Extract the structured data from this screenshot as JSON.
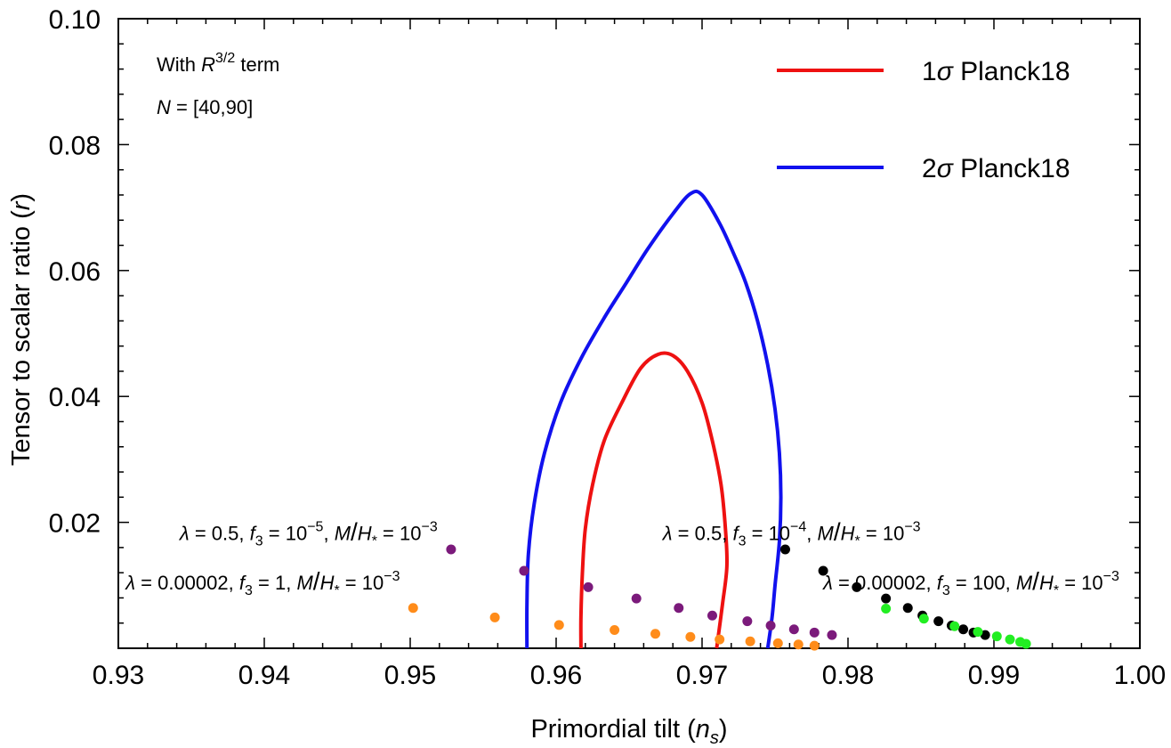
{
  "chart_data": {
    "type": "scatter",
    "title": "",
    "xlabel": {
      "main": "Primordial tilt (",
      "var": "n",
      "sub": "s",
      "close": ")"
    },
    "ylabel": {
      "main": "Tensor to scalar ratio (",
      "var": "r",
      "close": ")"
    },
    "xlim": [
      0.93,
      1.0
    ],
    "ylim": [
      0.0,
      0.1
    ],
    "x_ticks": [
      0.93,
      0.94,
      0.95,
      0.96,
      0.97,
      0.98,
      0.99,
      1.0
    ],
    "x_tick_labels": [
      "0.93",
      "0.94",
      "0.95",
      "0.96",
      "0.97",
      "0.98",
      "0.99",
      "1.00"
    ],
    "y_ticks": [
      0.02,
      0.04,
      0.06,
      0.08,
      0.1
    ],
    "y_tick_labels": [
      "0.02",
      "0.04",
      "0.06",
      "0.08",
      "0.10"
    ],
    "legend": {
      "position": "top-right",
      "items": [
        {
          "sigma": "1",
          "symbol": "σ",
          "text": " Planck18",
          "color": "#ee1111"
        },
        {
          "sigma": "2",
          "symbol": "σ",
          "text": " Planck18",
          "color": "#1111ee"
        }
      ]
    },
    "panel_text": {
      "line1": {
        "pre": "With ",
        "var": "R",
        "sup": "3/2",
        "post": " term"
      },
      "line2": {
        "var": "N",
        "post": " = [40,90]"
      }
    },
    "contours": [
      {
        "name": "1σ Planck18",
        "color": "#ee1111",
        "points": [
          [
            0.9617,
            0.0
          ],
          [
            0.9617,
            0.005
          ],
          [
            0.9618,
            0.012
          ],
          [
            0.962,
            0.019
          ],
          [
            0.9625,
            0.026
          ],
          [
            0.9633,
            0.033
          ],
          [
            0.9645,
            0.039
          ],
          [
            0.9658,
            0.0445
          ],
          [
            0.967,
            0.0467
          ],
          [
            0.968,
            0.0465
          ],
          [
            0.969,
            0.044
          ],
          [
            0.97,
            0.039
          ],
          [
            0.9707,
            0.033
          ],
          [
            0.9713,
            0.026
          ],
          [
            0.9716,
            0.019
          ],
          [
            0.9717,
            0.013
          ],
          [
            0.9714,
            0.007
          ],
          [
            0.971,
            0.0
          ]
        ]
      },
      {
        "name": "2σ Planck18",
        "color": "#1111ee",
        "points": [
          [
            0.958,
            0.0
          ],
          [
            0.958,
            0.007
          ],
          [
            0.9581,
            0.015
          ],
          [
            0.9585,
            0.023
          ],
          [
            0.9592,
            0.031
          ],
          [
            0.9603,
            0.039
          ],
          [
            0.9617,
            0.046
          ],
          [
            0.9633,
            0.0525
          ],
          [
            0.9648,
            0.058
          ],
          [
            0.9663,
            0.0635
          ],
          [
            0.968,
            0.069
          ],
          [
            0.9692,
            0.0722
          ],
          [
            0.97,
            0.072
          ],
          [
            0.9712,
            0.0675
          ],
          [
            0.9722,
            0.0625
          ],
          [
            0.973,
            0.058
          ],
          [
            0.9738,
            0.052
          ],
          [
            0.9745,
            0.045
          ],
          [
            0.975,
            0.038
          ],
          [
            0.9753,
            0.031
          ],
          [
            0.9754,
            0.024
          ],
          [
            0.9753,
            0.017
          ],
          [
            0.975,
            0.01
          ],
          [
            0.9748,
            0.005
          ],
          [
            0.9745,
            0.0
          ]
        ]
      }
    ],
    "series": [
      {
        "name": "lambda=0.00002, f3=1",
        "color": "#ff8c1a",
        "x": [
          0.9502,
          0.9558,
          0.9602,
          0.964,
          0.9668,
          0.9692,
          0.9712,
          0.9733,
          0.9752,
          0.9766,
          0.9777
        ],
        "y": [
          0.0064,
          0.0049,
          0.0037,
          0.0029,
          0.0023,
          0.0018,
          0.0014,
          0.0011,
          0.0008,
          0.0006,
          0.0004
        ]
      },
      {
        "name": "lambda=0.5, f3=1e-5",
        "color": "#7b1a7b",
        "x": [
          0.9528,
          0.9578,
          0.9622,
          0.9655,
          0.9684,
          0.9707,
          0.9731,
          0.9747,
          0.9763,
          0.9777,
          0.9789
        ],
        "y": [
          0.0157,
          0.0123,
          0.0097,
          0.0079,
          0.0064,
          0.0052,
          0.0043,
          0.0036,
          0.003,
          0.0025,
          0.0021
        ]
      },
      {
        "name": "lambda=0.5, f3=1e-4",
        "color": "#000000",
        "x": [
          0.9757,
          0.9783,
          0.9806,
          0.9826,
          0.9841,
          0.9851,
          0.9862,
          0.9871,
          0.9879,
          0.9886,
          0.9894
        ],
        "y": [
          0.0157,
          0.0123,
          0.0097,
          0.0079,
          0.0064,
          0.0052,
          0.0043,
          0.0036,
          0.003,
          0.0025,
          0.0021
        ]
      },
      {
        "name": "lambda=0.00002, f3=100",
        "color": "#22ee22",
        "x": [
          0.9826,
          0.9852,
          0.9873,
          0.9889,
          0.9902,
          0.9911,
          0.9918,
          0.9922
        ],
        "y": [
          0.0063,
          0.0047,
          0.0035,
          0.0026,
          0.0019,
          0.0014,
          0.001,
          0.0007
        ]
      }
    ],
    "annotations": [
      {
        "id": "ann-purple",
        "anchor_x": 0.9342,
        "anchor_y": 0.0172,
        "lam": "0.5",
        "f3": "10",
        "f3exp": "−5",
        "mh": "10",
        "mhexp": "−3"
      },
      {
        "id": "ann-orange",
        "anchor_x": 0.9305,
        "anchor_y": 0.0093,
        "lam": "0.00002",
        "f3": "1",
        "f3exp": "",
        "mh": "10",
        "mhexp": "−3"
      },
      {
        "id": "ann-black",
        "anchor_x": 0.9673,
        "anchor_y": 0.0172,
        "lam": "0.5",
        "f3": "10",
        "f3exp": "−4",
        "mh": "10",
        "mhexp": "−3"
      },
      {
        "id": "ann-green",
        "anchor_x": 0.9783,
        "anchor_y": 0.0093,
        "lam": "0.00002",
        "f3": "100",
        "f3exp": "",
        "mh": "10",
        "mhexp": "−3"
      }
    ]
  }
}
